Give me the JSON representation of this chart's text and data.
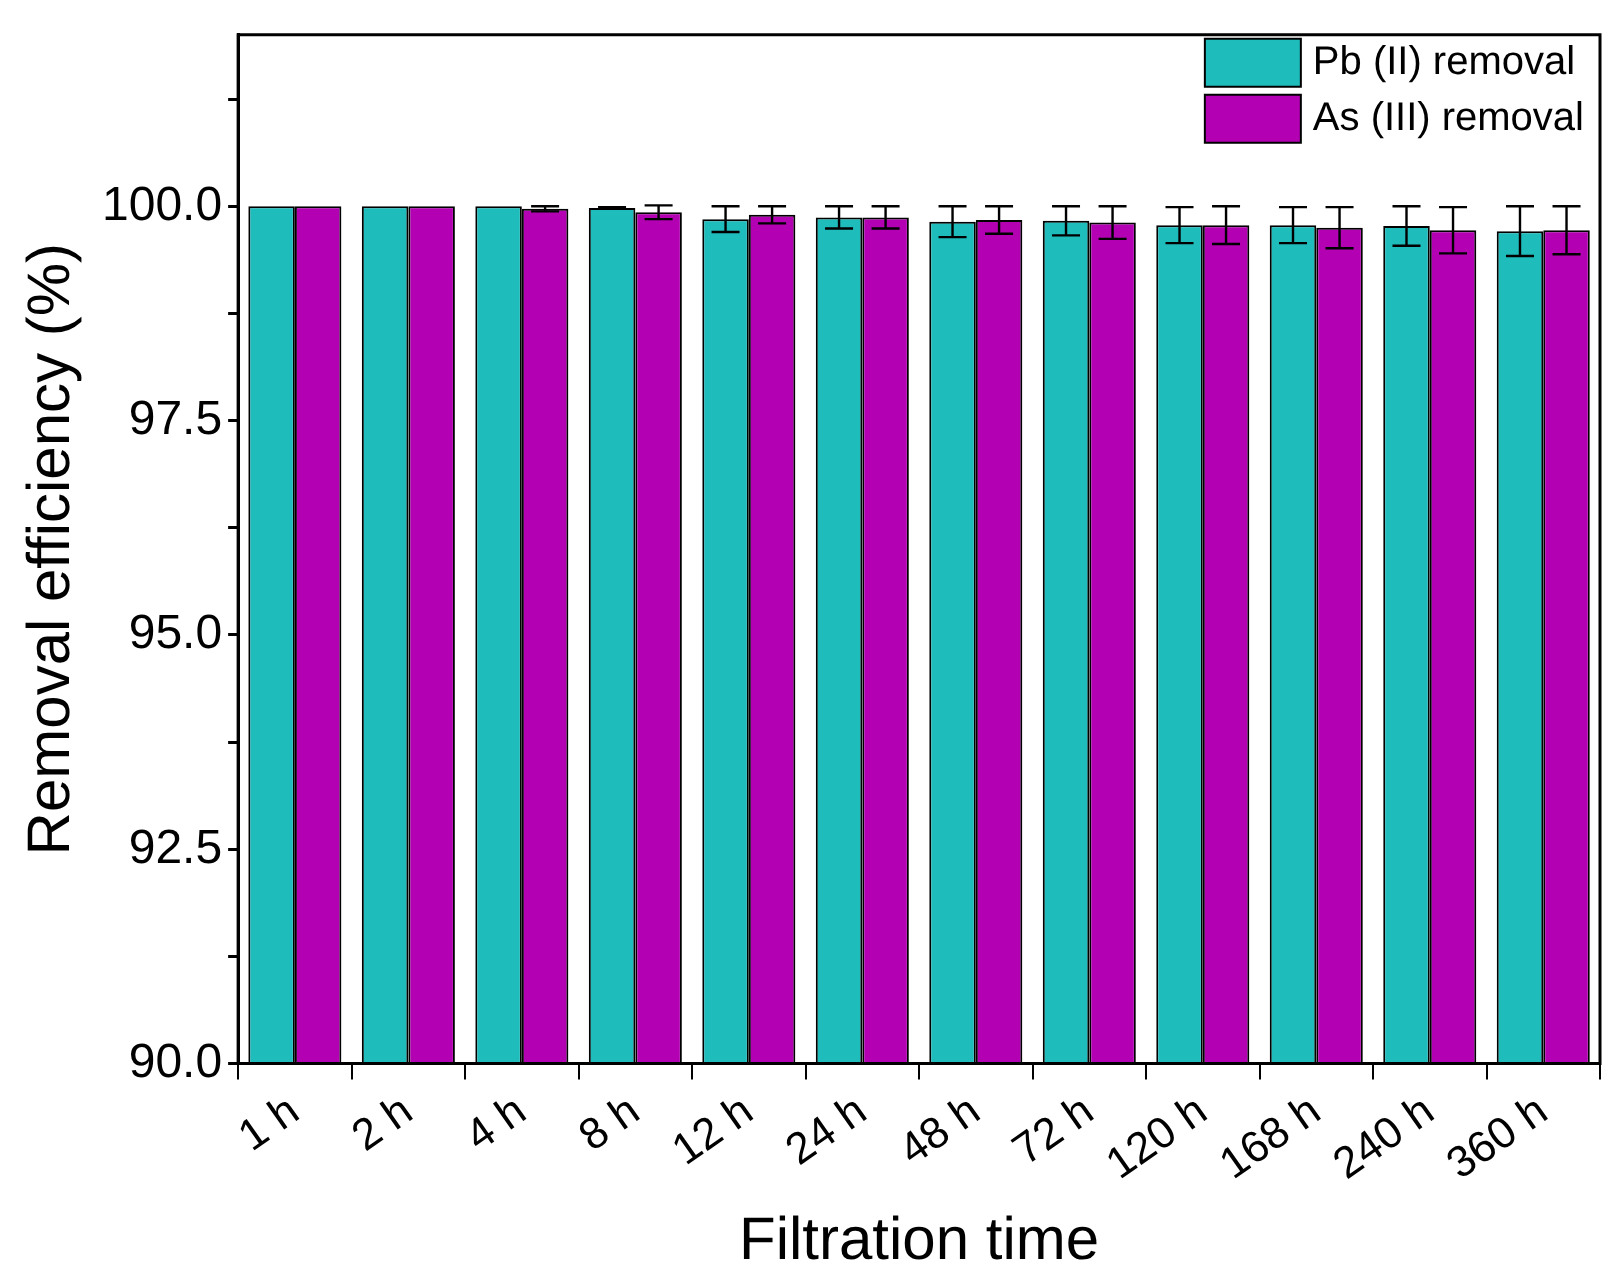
{
  "chart_data": {
    "type": "bar",
    "xlabel": "Filtration time",
    "ylabel": "Removal efficiency (%)",
    "categories": [
      "1 h",
      "2 h",
      "4 h",
      "8 h",
      "12 h",
      "24 h",
      "48 h",
      "72 h",
      "120 h",
      "168 h",
      "240 h",
      "360 h"
    ],
    "series": [
      {
        "name": "Pb (II) removal",
        "color": "#1fbcbc",
        "values": [
          100,
          100,
          100,
          99.98,
          99.85,
          99.87,
          99.82,
          99.83,
          99.78,
          99.78,
          99.77,
          99.71
        ],
        "errors": [
          null,
          null,
          null,
          0.01,
          0.15,
          0.13,
          0.18,
          0.17,
          0.21,
          0.21,
          0.23,
          0.29
        ]
      },
      {
        "name": "As (III) removal",
        "color": "#b300b3",
        "values": [
          100,
          100,
          99.97,
          99.93,
          99.9,
          99.87,
          99.84,
          99.81,
          99.78,
          99.75,
          99.72,
          99.72
        ],
        "errors": [
          null,
          null,
          0.03,
          0.08,
          0.1,
          0.13,
          0.16,
          0.19,
          0.22,
          0.24,
          0.27,
          0.28
        ]
      }
    ],
    "ylim": [
      90,
      102
    ],
    "yticks": [
      {
        "value": 90,
        "label": "90.0"
      },
      {
        "value": 91.25,
        "label": null
      },
      {
        "value": 92.5,
        "label": "92.5"
      },
      {
        "value": 93.75,
        "label": null
      },
      {
        "value": 95,
        "label": "95.0"
      },
      {
        "value": 96.25,
        "label": null
      },
      {
        "value": 97.5,
        "label": "97.5"
      },
      {
        "value": 98.75,
        "label": null
      },
      {
        "value": 100,
        "label": "100.0"
      },
      {
        "value": 101.25,
        "label": null
      }
    ],
    "grid": false,
    "legend": "top right"
  }
}
